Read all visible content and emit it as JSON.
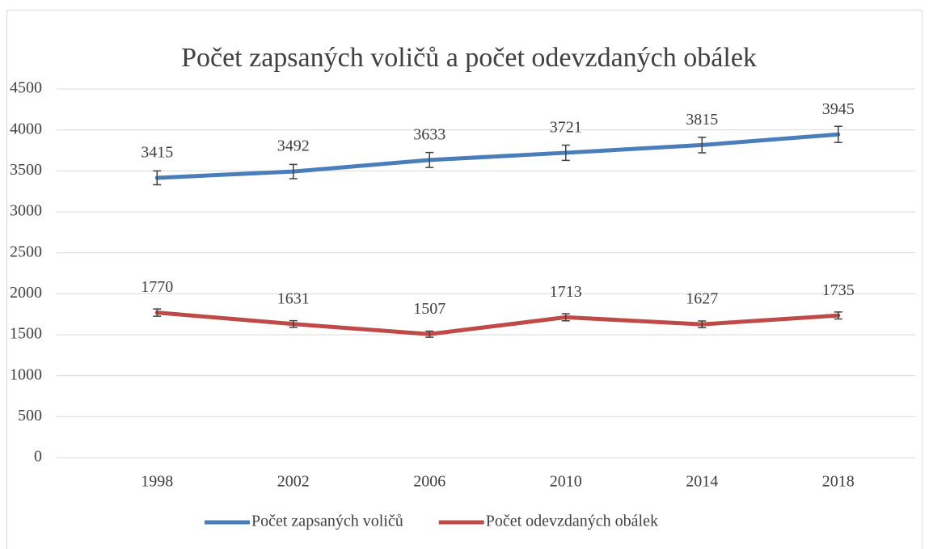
{
  "chart_data": {
    "type": "line",
    "title": "Počet zapsaných voličů a počet odevzdaných obálek",
    "categories": [
      "1998",
      "2002",
      "2006",
      "2010",
      "2014",
      "2018"
    ],
    "series": [
      {
        "name": "Počet zapsaných voličů",
        "color": "#4a7ebb",
        "values": [
          3415,
          3492,
          3633,
          3721,
          3815,
          3945
        ],
        "errors": [
          85,
          87,
          91,
          93,
          95,
          99
        ]
      },
      {
        "name": "Počet odevzdaných obálek",
        "color": "#be4b48",
        "values": [
          1770,
          1631,
          1507,
          1713,
          1627,
          1735
        ],
        "errors": [
          44,
          41,
          38,
          43,
          41,
          43
        ]
      }
    ],
    "ylim": [
      0,
      4500
    ],
    "yticks": [
      0,
      500,
      1000,
      1500,
      2000,
      2500,
      3000,
      3500,
      4000,
      4500
    ],
    "grid": true,
    "legend": "bottom"
  }
}
